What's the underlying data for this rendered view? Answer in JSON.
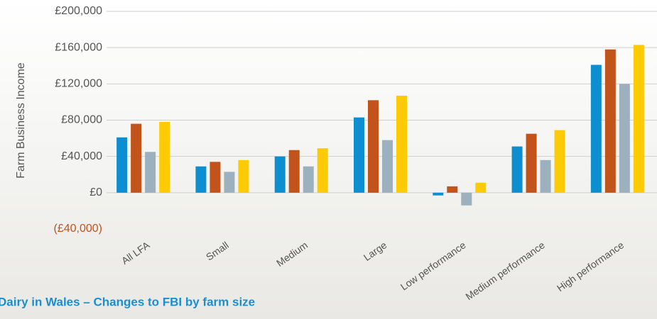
{
  "chart_data": {
    "type": "bar",
    "title": "Dairy in Wales – Changes to FBI by farm size",
    "y_label": "Farm Business Income",
    "categories": [
      "All LFA",
      "Small",
      "Medium",
      "Large",
      "Low performance",
      "Medium performance",
      "High performance"
    ],
    "series": [
      {
        "color": "#0d8ed0",
        "values": [
          61000,
          29000,
          40000,
          83000,
          -3000,
          51000,
          141000
        ]
      },
      {
        "color": "#c2531b",
        "values": [
          76000,
          34000,
          47000,
          102000,
          7000,
          65000,
          158000
        ]
      },
      {
        "color": "#9cb0be",
        "values": [
          45000,
          23000,
          29000,
          58000,
          -14000,
          36000,
          120000
        ]
      },
      {
        "color": "#fccb05",
        "values": [
          78000,
          36000,
          49000,
          107000,
          11000,
          69000,
          163000
        ]
      }
    ],
    "ylim": [
      -40000,
      200000
    ],
    "yticks": [
      {
        "value": -40000,
        "label": "(£40,000)"
      },
      {
        "value": 0,
        "label": "£0"
      },
      {
        "value": 40000,
        "label": "£40,000"
      },
      {
        "value": 80000,
        "label": "£80,000"
      },
      {
        "value": 120000,
        "label": "£120,000"
      },
      {
        "value": 160000,
        "label": "£160,000"
      },
      {
        "value": 200000,
        "label": "£200,000"
      }
    ],
    "grid": true
  }
}
